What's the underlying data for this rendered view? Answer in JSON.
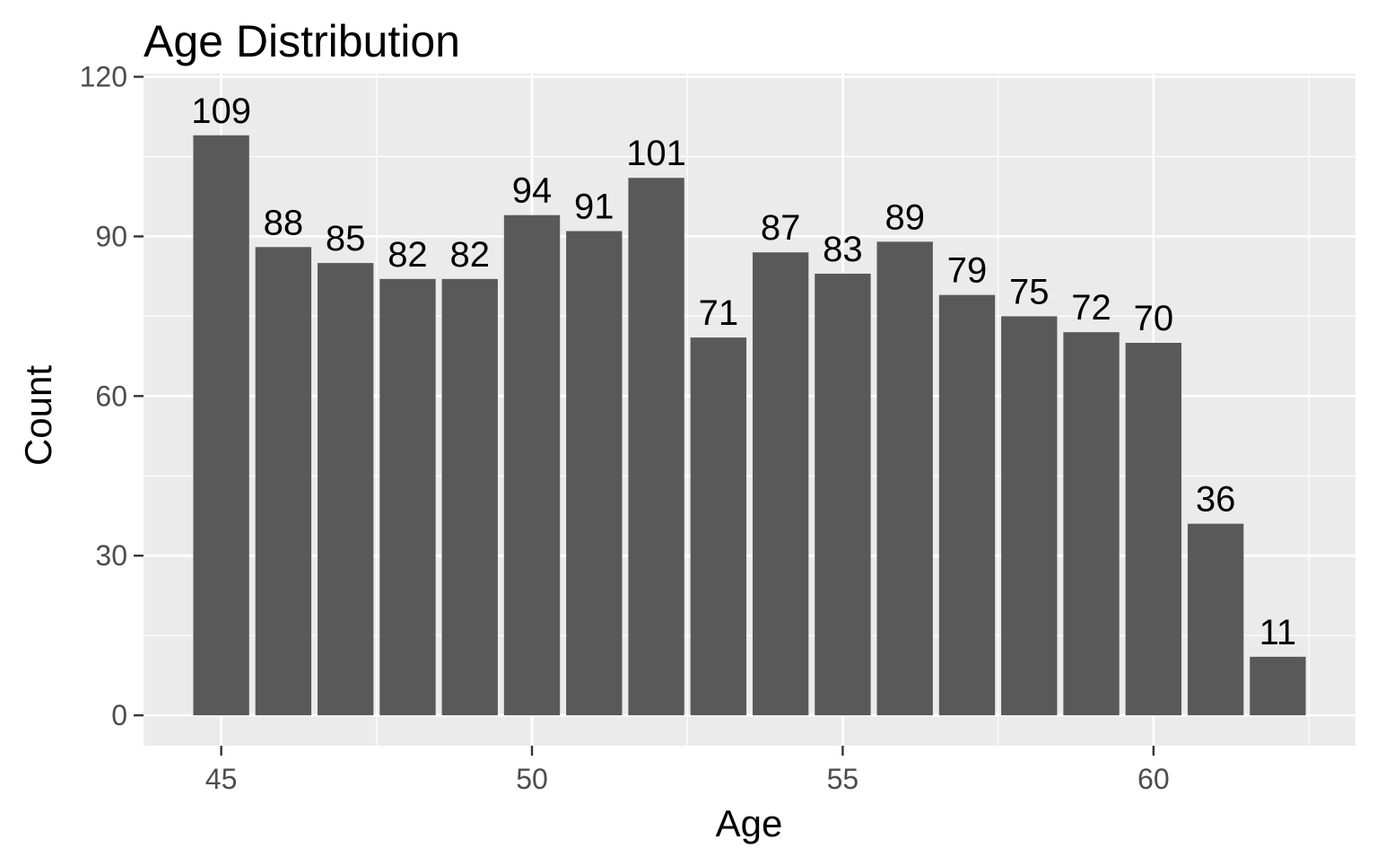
{
  "chart_data": {
    "type": "bar",
    "title": "Age Distribution",
    "xlabel": "Age",
    "ylabel": "Count",
    "x": [
      45,
      46,
      47,
      48,
      49,
      50,
      51,
      52,
      53,
      54,
      55,
      56,
      57,
      58,
      59,
      60,
      61,
      62
    ],
    "values": [
      109,
      88,
      85,
      82,
      82,
      94,
      91,
      101,
      71,
      87,
      83,
      89,
      79,
      75,
      72,
      70,
      36,
      11
    ],
    "data_labels": [
      "109",
      "88",
      "85",
      "82",
      "82",
      "94",
      "91",
      "101",
      "71",
      "87",
      "83",
      "89",
      "79",
      "75",
      "72",
      "70",
      "36",
      "11"
    ],
    "xlim": [
      43.75,
      63.25
    ],
    "ylim": [
      -5.72,
      120.6
    ],
    "xticks": [
      45,
      50,
      55,
      60
    ],
    "xtick_labels": [
      "45",
      "50",
      "55",
      "60"
    ],
    "yticks": [
      0,
      30,
      60,
      90,
      120
    ],
    "ytick_labels": [
      "0",
      "30",
      "60",
      "90",
      "120"
    ],
    "grid": true,
    "legend": "none",
    "colors": {
      "bar": "#595959",
      "panel": "#EBEBEB",
      "grid": "#FFFFFF",
      "text": "#000000",
      "tick_text": "#4D4D4D",
      "tick_mark": "#333333"
    }
  }
}
